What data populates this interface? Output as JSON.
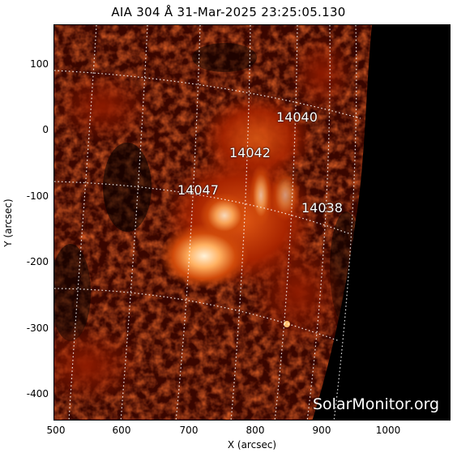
{
  "title": "AIA 304 Å 31-Mar-2025 23:25:05.130",
  "axes": {
    "xlabel": "X (arcsec)",
    "ylabel": "Y (arcsec)",
    "xticks": [
      "500",
      "600",
      "700",
      "800",
      "900",
      "1000"
    ],
    "yticks": [
      "100",
      "0",
      "-100",
      "-200",
      "-300",
      "-400"
    ]
  },
  "active_regions": [
    "14040",
    "14042",
    "14047",
    "14038"
  ],
  "watermark": "SolarMonitor.org",
  "colors": {
    "background": "#ffffff",
    "space": "#000000",
    "solar_base": "#5a0a00",
    "solar_mid": "#b82a00",
    "solar_bright": "#ffd9a0",
    "grid": "#ffffff"
  }
}
